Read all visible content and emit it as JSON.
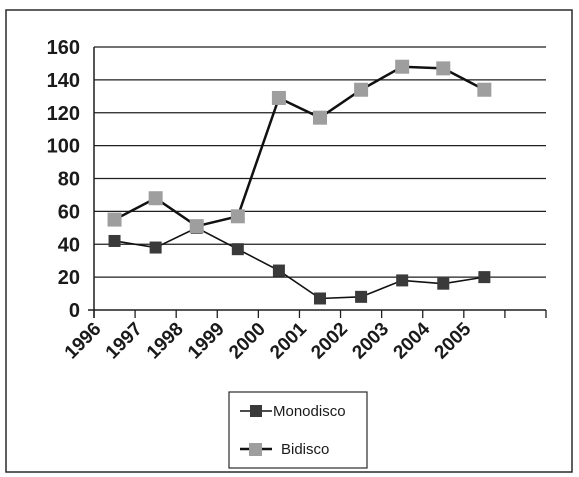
{
  "chart_data": {
    "type": "line",
    "categories": [
      "1996",
      "1997",
      "1998",
      "1999",
      "2000",
      "2001",
      "2002",
      "2003",
      "2004",
      "2005"
    ],
    "series": [
      {
        "name": "Monodisco",
        "values": [
          42,
          38,
          50,
          37,
          24,
          7,
          8,
          18,
          16,
          20
        ],
        "color": "#3a3a3a"
      },
      {
        "name": "Bidisco",
        "values": [
          55,
          68,
          51,
          57,
          129,
          117,
          134,
          148,
          147,
          134
        ],
        "color": "#9e9e9e"
      }
    ],
    "yticks": [
      0,
      20,
      40,
      60,
      80,
      100,
      120,
      140,
      160
    ],
    "ylim": [
      0,
      160
    ],
    "grid": true,
    "legend_position": "bottom-center",
    "title": "",
    "xlabel": "",
    "ylabel": ""
  }
}
